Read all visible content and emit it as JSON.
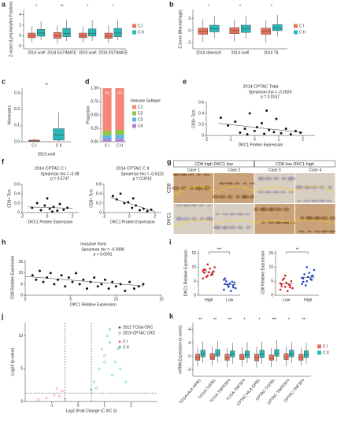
{
  "chart_data": [
    {
      "type": "box",
      "panel": "a",
      "y_label": "Z-score (Lymphocytes Fraction)",
      "categories": [
        "2014 xcell",
        "2014 ESTIMATE",
        "2019 xcell",
        "2019 ESTIMATE"
      ],
      "significance": [
        "*",
        "**",
        "*",
        "*"
      ],
      "series": [
        {
          "name": "C I",
          "color": "#e8735a",
          "values": [
            [
              -1.2,
              -0.4,
              0,
              0.5,
              1.8
            ],
            [
              -1.5,
              -0.5,
              0,
              0.6,
              2.0
            ],
            [
              -1.3,
              -0.4,
              0,
              0.5,
              1.7
            ],
            [
              -1.4,
              -0.5,
              -0.1,
              0.5,
              1.9
            ]
          ]
        },
        {
          "name": "C II",
          "color": "#2ab7b7",
          "values": [
            [
              -0.8,
              -0.1,
              0.5,
              1.2,
              2.8
            ],
            [
              -1.0,
              -0.2,
              0.4,
              1.4,
              3.0
            ],
            [
              -1.0,
              -0.1,
              0.4,
              1.3,
              2.9
            ],
            [
              -0.9,
              -0.2,
              0.5,
              1.4,
              3.1
            ]
          ]
        }
      ],
      "ylim": [
        -2.5,
        5
      ],
      "yticks": [
        -2,
        0,
        2,
        4
      ]
    },
    {
      "type": "box",
      "panel": "b",
      "y_label": "Z-score (Macrophage)",
      "categories": [
        "2014 cibersort",
        "2014 xcell",
        "2014 TIL"
      ],
      "significance": [
        "*",
        "*",
        "*"
      ],
      "series": [
        {
          "name": "C I",
          "color": "#e8735a",
          "values": [
            [
              -1.9,
              -0.6,
              -0.1,
              0.4,
              1.9
            ],
            [
              -1.8,
              -0.5,
              0,
              0.5,
              1.8
            ],
            [
              -2.0,
              -0.6,
              -0.1,
              0.4,
              1.7
            ]
          ]
        },
        {
          "name": "C II",
          "color": "#2ab7b7",
          "values": [
            [
              -1.2,
              -0.2,
              0.3,
              0.9,
              2.4
            ],
            [
              -1.3,
              -0.3,
              0.3,
              0.9,
              2.5
            ],
            [
              -1.0,
              0,
              0.4,
              1.0,
              2.6
            ]
          ]
        }
      ],
      "ylim": [
        -3,
        3.5
      ],
      "yticks": [
        -2,
        0,
        2
      ]
    },
    {
      "type": "box",
      "panel": "c",
      "y_label": "Monocytes",
      "x_label": "2019 xcell",
      "categories": [
        "C I",
        "C II"
      ],
      "significance": [
        "**"
      ],
      "series": [
        {
          "color": "#e8735a",
          "values": [
            [
              0,
              0.002,
              0.005,
              0.01,
              0.02
            ],
            null
          ]
        },
        {
          "color": "#2ab7b7",
          "values": [
            null,
            [
              0,
              0.01,
              0.04,
              0.08,
              0.18
            ]
          ]
        }
      ],
      "ylim": [
        0,
        0.33
      ],
      "yticks": [
        {
          "value": 0,
          "label": "0.0"
        },
        0.1,
        0.2,
        0.3
      ]
    },
    {
      "type": "stacked_bar",
      "panel": "d",
      "y_label": "Proportion",
      "legend_title": "Immune Subtype",
      "categories": [
        "C I",
        "C II"
      ],
      "bar_labels": [
        "ns",
        "ns"
      ],
      "series": [
        {
          "name": "C1",
          "color": "#f4877a",
          "values": [
            0.8,
            0.78
          ]
        },
        {
          "name": "C2",
          "color": "#8cc63f",
          "values": [
            0.08,
            0.09
          ]
        },
        {
          "name": "C3",
          "color": "#5fb6e0",
          "values": [
            0.07,
            0.08
          ]
        },
        {
          "name": "C4",
          "color": "#b07fd6",
          "values": [
            0.05,
            0.05
          ]
        }
      ],
      "ylim": [
        0,
        1
      ],
      "yticks": [
        {
          "value": 0,
          "label": "0.00"
        },
        {
          "value": 0.25,
          "label": "0.25"
        },
        {
          "value": 0.5,
          "label": "0.50"
        },
        {
          "value": 0.75,
          "label": "0.75"
        },
        {
          "value": 1,
          "label": "1.00"
        }
      ]
    },
    {
      "type": "scatter",
      "panel": "e",
      "title": "2014 CPTAC Total",
      "annotations": [
        "Spearman rho = -0.2624",
        "p = 0.0147"
      ],
      "x_label": "DKC1 Protein Expression",
      "y_label": "CD8+ Tcm",
      "color": "#111111",
      "x": [
        -1.4,
        -1.1,
        -0.8,
        -0.6,
        -0.4,
        -0.2,
        0,
        0.1,
        0.3,
        0.4,
        0.6,
        0.8,
        0.9,
        1.1,
        1.3,
        1.5,
        1.7,
        1.9,
        0.5,
        -0.3
      ],
      "values": [
        0.32,
        0.18,
        0.25,
        0.05,
        0.12,
        0.4,
        0.08,
        0.15,
        0.22,
        0.03,
        0.1,
        0.06,
        0.3,
        0.04,
        0.12,
        0.02,
        0.08,
        0.05,
        0.45,
        0.02
      ],
      "trend": {
        "x": [
          -1.5,
          2
        ],
        "y": [
          0.22,
          0.05
        ]
      },
      "xlim": [
        -2,
        2.5
      ],
      "xticks": [
        -2,
        -1,
        0,
        1,
        2
      ],
      "ylim": [
        0,
        0.6
      ],
      "yticks": [
        0,
        0.2,
        0.4,
        0.6
      ]
    },
    {
      "type": "scatter",
      "panel": "f",
      "title": "2014 CPTAC C I",
      "annotations": [
        "Spearman rho = -0.08",
        "p = 0.5747"
      ],
      "x_label": "DKC1 Protein Expression",
      "y_label": "CD8+ Tcm",
      "color": "#111111",
      "x": [
        -1.2,
        -0.8,
        -0.5,
        -0.2,
        0,
        0.2,
        0.5,
        0.8,
        1.0,
        1.3,
        1.6,
        0.4
      ],
      "values": [
        0.1,
        0.2,
        0.05,
        0.15,
        0.3,
        0.08,
        0.12,
        0.04,
        0.18,
        0.06,
        0.1,
        0.02
      ],
      "trend": {
        "x": [
          -1.5,
          2
        ],
        "y": [
          0.12,
          0.09
        ]
      },
      "xlim": [
        -2,
        2.5
      ],
      "xticks": [
        -2,
        0,
        2
      ],
      "ylim": [
        0,
        0.6
      ],
      "yticks": [
        0,
        0.2,
        0.4,
        0.6
      ]
    },
    {
      "type": "scatter",
      "title": "2014 CPTAC C II",
      "annotations": [
        "Spearman rho = -0.5323",
        "p = 0.0010"
      ],
      "x_label": "DKC1 Protein Expression",
      "y_label": "CD8+ Tcm",
      "color": "#111111",
      "x": [
        -1.3,
        -1,
        -0.7,
        -0.4,
        -0.1,
        0.2,
        0.5,
        0.8,
        1.1,
        1.4,
        1.7,
        0.3
      ],
      "values": [
        0.35,
        0.28,
        0.4,
        0.2,
        0.22,
        0.1,
        0.15,
        0.05,
        0.08,
        0.03,
        0.06,
        0.3
      ],
      "trend": {
        "x": [
          -1.5,
          2
        ],
        "y": [
          0.32,
          0.02
        ]
      },
      "xlim": [
        -2,
        2.5
      ],
      "xticks": [
        -2,
        0,
        2
      ],
      "ylim": [
        0,
        0.6
      ],
      "yticks": [
        0,
        0.2,
        0.4,
        0.6
      ]
    },
    {
      "type": "scatter",
      "panel": "h",
      "title": "Invasive front",
      "annotations": [
        "Spearman rho = -0.3998",
        "p < 0.0001"
      ],
      "x_label": "DKC1 Relative Expression",
      "y_label": "CD8 Relative Expression",
      "color": "#111111",
      "x": [
        0.8,
        1.2,
        1.6,
        2.0,
        2.4,
        2.8,
        3.2,
        3.6,
        4.0,
        4.4,
        4.8,
        5.2,
        5.6,
        6.0,
        6.4,
        6.8,
        7.2,
        7.6,
        8.0,
        8.4,
        8.8,
        9.2,
        9.6,
        10.0,
        10.5,
        11.0,
        11.5,
        12.0,
        12.5,
        13.0
      ],
      "values": [
        9,
        7,
        11,
        6,
        8,
        10,
        5,
        7,
        9,
        4,
        8,
        6,
        10,
        5,
        7,
        3,
        6,
        8,
        4,
        5,
        7,
        3,
        6,
        4,
        5,
        2,
        6,
        3,
        4,
        5
      ],
      "trend": {
        "x": [
          0,
          13
        ],
        "y": [
          8.5,
          4.2
        ]
      },
      "xlim": [
        0,
        15
      ],
      "xticks": [
        0,
        5,
        10,
        15
      ],
      "ylim": [
        0,
        16
      ],
      "yticks": [
        0,
        5,
        10,
        15
      ]
    },
    {
      "type": "strip",
      "panel": "i",
      "y_label": "DKC1 Relative Expression",
      "significance": "***",
      "series": [
        {
          "name": "High",
          "color": "#e02020",
          "mean": 8.3,
          "values": [
            6,
            7,
            7.5,
            8,
            8.2,
            8.5,
            9,
            9.5,
            10,
            6.5,
            7.2,
            8.8,
            11,
            7.8,
            9.2
          ]
        },
        {
          "name": "Low",
          "color": "#2040d0",
          "mean": 3.8,
          "values": [
            2,
            3,
            3.5,
            4,
            4.2,
            4.5,
            5,
            1.5,
            2.5,
            3.8,
            4.8,
            5.5,
            3.2,
            2.8,
            6
          ]
        }
      ],
      "ylim": [
        0,
        16
      ],
      "yticks": [
        0,
        5,
        10,
        15
      ]
    },
    {
      "type": "strip",
      "y_label": "CD8 Relative Expression",
      "significance": "**",
      "series": [
        {
          "name": "Low",
          "color": "#e02020",
          "mean": 4.0,
          "values": [
            2,
            3,
            3.5,
            4,
            4.5,
            5,
            5.5,
            1.5,
            2.5,
            6,
            3.8,
            4.2,
            7,
            2.8,
            3.2
          ]
        },
        {
          "name": "High",
          "color": "#2040d0",
          "mean": 6.4,
          "values": [
            4,
            5,
            5.5,
            6,
            6.5,
            7,
            7.5,
            8,
            9,
            3.5,
            5.8,
            6.2,
            10,
            6.8,
            4.8
          ]
        }
      ],
      "ylim": [
        0,
        16
      ],
      "yticks": [
        0,
        5,
        10,
        15
      ]
    },
    {
      "type": "volcano",
      "panel": "j",
      "x_label": "Log2 (Fold Change (C II/C I))",
      "y_label": "-Log10 (p-value)",
      "shape_legend": [
        "2012 TCGA CRC",
        "2019 CPTAC CRC"
      ],
      "series": [
        {
          "name": "C I",
          "color": "#e8735a",
          "x": [
            -1.2,
            -0.9,
            -0.7,
            -0.6,
            -0.5,
            -1.5,
            -0.8
          ],
          "values": [
            0.5,
            1.0,
            0.8,
            1.6,
            0.4,
            0.3,
            2.0
          ]
        },
        {
          "name": "C II",
          "color": "#2ab7b7",
          "x": [
            0.6,
            0.8,
            1.0,
            1.2,
            1.4,
            0.9,
            1.1,
            1.3,
            1.6,
            0.7,
            1.0,
            1.5,
            1.8,
            0.5,
            1.2
          ],
          "values": [
            3,
            5,
            7,
            9,
            6,
            8,
            10,
            4,
            5,
            2,
            6,
            8,
            3,
            1.8,
            11
          ]
        }
      ],
      "hlines": [
        1.3
      ],
      "vlines": [
        -0.5,
        0.5
      ],
      "xlim": [
        -2,
        3
      ],
      "xticks": [
        -1,
        0,
        1,
        2
      ],
      "ylim": [
        0,
        12
      ],
      "yticks": [
        0,
        5,
        10
      ]
    },
    {
      "type": "box",
      "panel": "k",
      "y_label": "mRNA Expression (z-score)",
      "categories": [
        "TCGA-HLA-DPB1",
        "TCGA-TGFB1",
        "TCGA-TNFRSF4",
        "TCGA-TNFSF4",
        "CPTAC-HLA-DPB1",
        "CPTAC-TGFB1",
        "CPTAC-TNFRSF4",
        "CPTAC-TNFSF4"
      ],
      "significance": [
        "**",
        "**",
        "**",
        "*",
        "*",
        "***",
        "*",
        "**"
      ],
      "series": [
        {
          "name": "C I",
          "color": "#e8735a",
          "values": [
            [
              -1.5,
              -0.6,
              -0.2,
              0.3,
              1.3
            ],
            [
              -1.4,
              -0.5,
              -0.1,
              0.4,
              1.4
            ],
            [
              -1.6,
              -0.6,
              -0.2,
              0.3,
              1.2
            ],
            [
              -1.5,
              -0.5,
              -0.1,
              0.3,
              1.3
            ],
            [
              -1.7,
              -0.7,
              -0.2,
              0.3,
              1.4
            ],
            [
              -1.6,
              -0.6,
              -0.3,
              0.2,
              1.2
            ],
            [
              -1.5,
              -0.5,
              -0.1,
              0.4,
              1.5
            ],
            [
              -1.4,
              -0.6,
              -0.2,
              0.3,
              1.3
            ]
          ]
        },
        {
          "name": "C II",
          "color": "#2ab7b7",
          "values": [
            [
              -1.0,
              -0.1,
              0.3,
              0.9,
              2.2
            ],
            [
              -0.9,
              0,
              0.4,
              1.0,
              2.3
            ],
            [
              -1.1,
              -0.1,
              0.3,
              0.8,
              2.0
            ],
            [
              -1.0,
              -0.2,
              0.2,
              0.8,
              2.1
            ],
            [
              -1.2,
              -0.2,
              0.3,
              0.9,
              2.2
            ],
            [
              -0.9,
              0,
              0.4,
              1.0,
              2.4
            ],
            [
              -1.0,
              -0.1,
              0.3,
              0.9,
              2.1
            ],
            [
              -1.1,
              -0.2,
              0.2,
              0.8,
              2.0
            ]
          ]
        }
      ],
      "ylim": [
        -3,
        5
      ],
      "yticks": [
        -2,
        0,
        2,
        4
      ]
    }
  ],
  "image_panel": {
    "panel": "g",
    "column_groups": [
      "CD8 high DKC1 low",
      "CD8 low DKC1 high"
    ],
    "cases": [
      "Case 1",
      "Case 2",
      "Case 3",
      "Case 4"
    ],
    "rows": [
      "CD8",
      "DKC1"
    ]
  }
}
